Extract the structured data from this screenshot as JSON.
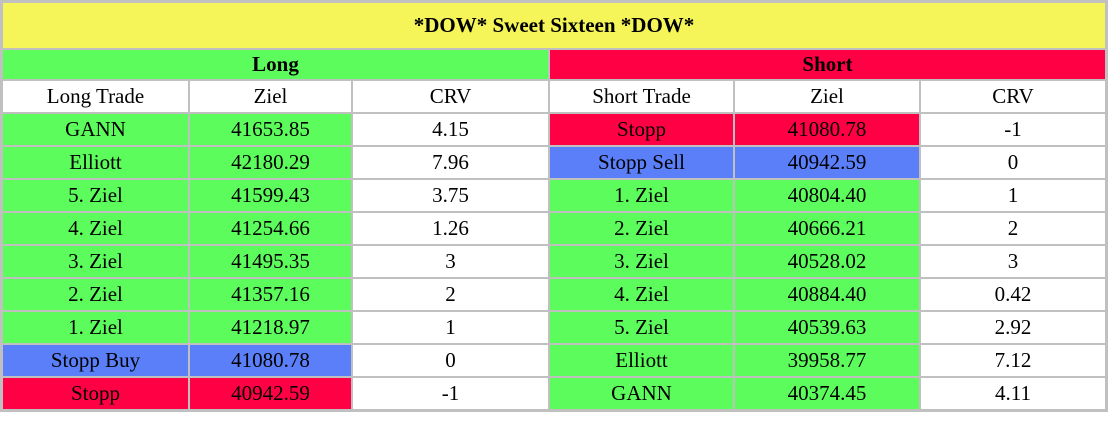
{
  "colors": {
    "title_bg": "#f5f55a",
    "green": "#5cfc5c",
    "red": "#ff0044",
    "blue": "#5a7ff8",
    "white": "#ffffff"
  },
  "title": "*DOW* Sweet Sixteen *DOW*",
  "long": {
    "heading": "Long",
    "columns": [
      "Long Trade",
      "Ziel",
      "CRV"
    ],
    "rows": [
      {
        "label": "GANN",
        "ziel": "41653.85",
        "crv": "4.15",
        "color": "green"
      },
      {
        "label": "Elliott",
        "ziel": "42180.29",
        "crv": "7.96",
        "color": "green"
      },
      {
        "label": "5. Ziel",
        "ziel": "41599.43",
        "crv": "3.75",
        "color": "green"
      },
      {
        "label": "4. Ziel",
        "ziel": "41254.66",
        "crv": "1.26",
        "color": "green"
      },
      {
        "label": "3. Ziel",
        "ziel": "41495.35",
        "crv": "3",
        "color": "green"
      },
      {
        "label": "2. Ziel",
        "ziel": "41357.16",
        "crv": "2",
        "color": "green"
      },
      {
        "label": "1. Ziel",
        "ziel": "41218.97",
        "crv": "1",
        "color": "green"
      },
      {
        "label": "Stopp Buy",
        "ziel": "41080.78",
        "crv": "0",
        "color": "blue"
      },
      {
        "label": "Stopp",
        "ziel": "40942.59",
        "crv": "-1",
        "color": "red"
      }
    ]
  },
  "short": {
    "heading": "Short",
    "columns": [
      "Short Trade",
      "Ziel",
      "CRV"
    ],
    "rows": [
      {
        "label": "Stopp",
        "ziel": "41080.78",
        "crv": "-1",
        "color": "red"
      },
      {
        "label": "Stopp Sell",
        "ziel": "40942.59",
        "crv": "0",
        "color": "blue"
      },
      {
        "label": "1. Ziel",
        "ziel": "40804.40",
        "crv": "1",
        "color": "green"
      },
      {
        "label": "2. Ziel",
        "ziel": "40666.21",
        "crv": "2",
        "color": "green"
      },
      {
        "label": "3. Ziel",
        "ziel": "40528.02",
        "crv": "3",
        "color": "green"
      },
      {
        "label": "4. Ziel",
        "ziel": "40884.40",
        "crv": "0.42",
        "color": "green"
      },
      {
        "label": "5. Ziel",
        "ziel": "40539.63",
        "crv": "2.92",
        "color": "green"
      },
      {
        "label": "Elliott",
        "ziel": "39958.77",
        "crv": "7.12",
        "color": "green"
      },
      {
        "label": "GANN",
        "ziel": "40374.45",
        "crv": "4.11",
        "color": "green"
      }
    ]
  }
}
